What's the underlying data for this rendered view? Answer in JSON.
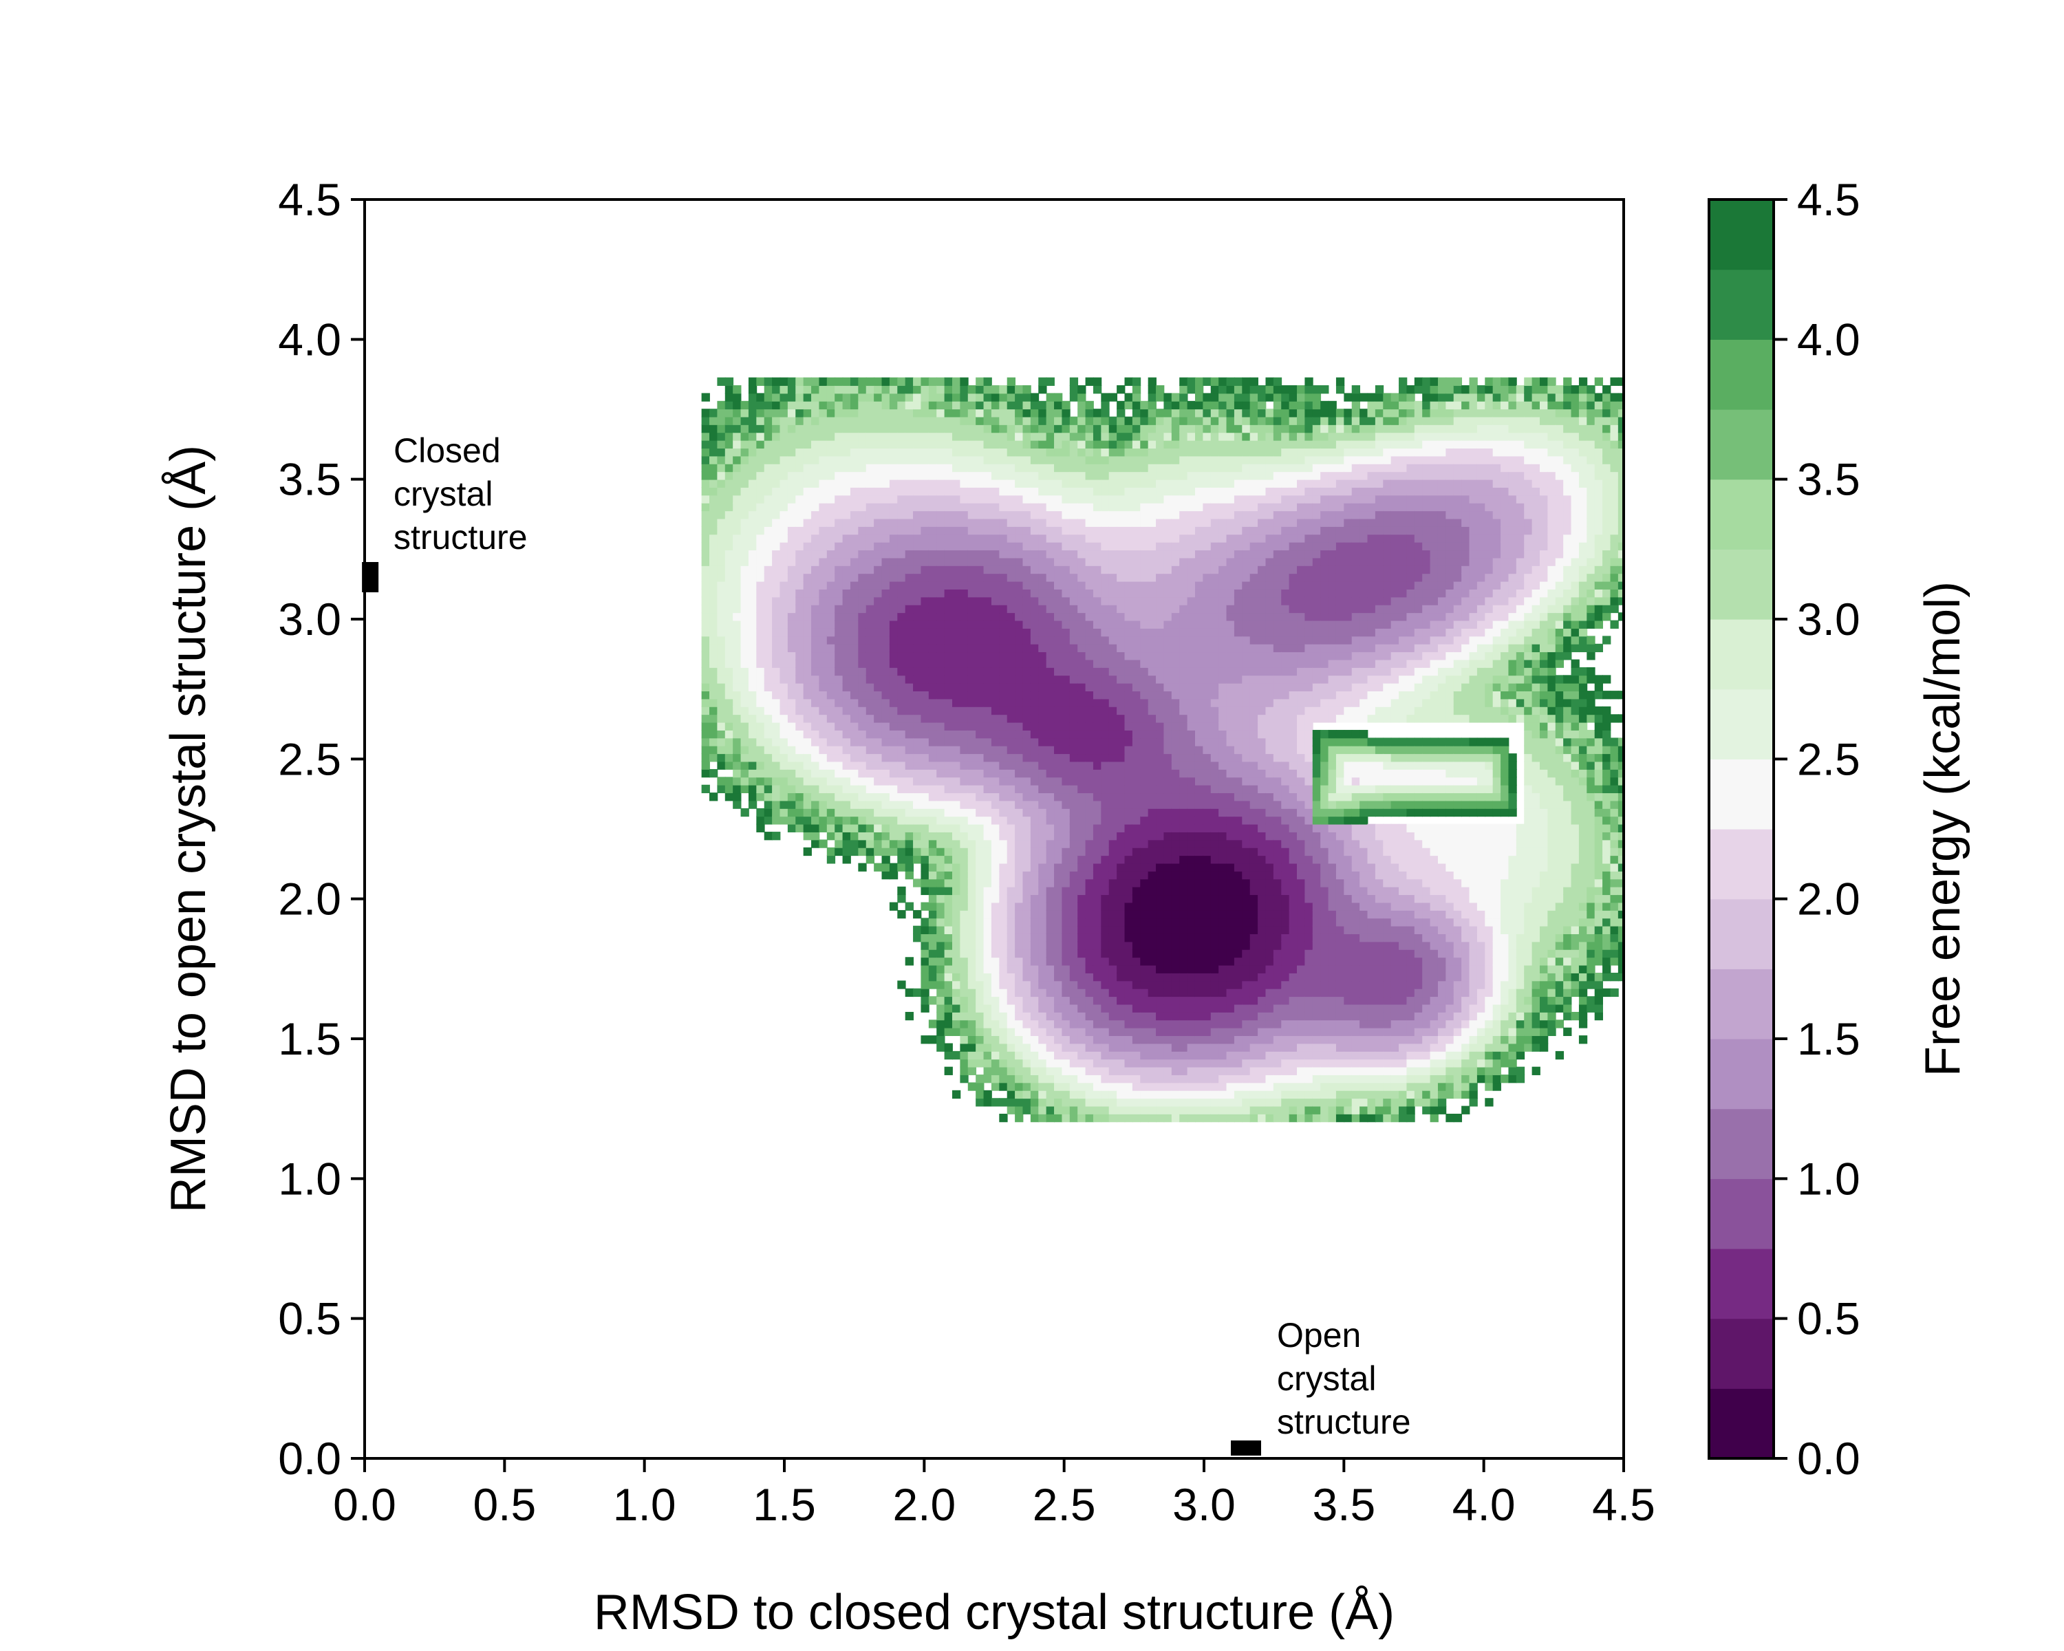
{
  "chart_data": {
    "type": "heatmap",
    "subtype": "filled-contour free energy landscape",
    "xlabel": "RMSD to closed crystal structure (Å)",
    "ylabel": "RMSD to open crystal structure (Å)",
    "xlim": [
      0.0,
      4.5
    ],
    "ylim": [
      0.0,
      4.5
    ],
    "xticks": [
      "0.0",
      "0.5",
      "1.0",
      "1.5",
      "2.0",
      "2.5",
      "3.0",
      "3.5",
      "4.0",
      "4.5"
    ],
    "yticks": [
      "0.0",
      "0.5",
      "1.0",
      "1.5",
      "2.0",
      "2.5",
      "3.0",
      "3.5",
      "4.0",
      "4.5"
    ],
    "grid": false,
    "colorbar": {
      "label": "Free energy (kcal/mol)",
      "range": [
        0.0,
        4.5
      ],
      "ticks": [
        "0.0",
        "0.5",
        "1.0",
        "1.5",
        "2.0",
        "2.5",
        "3.0",
        "3.5",
        "4.0",
        "4.5"
      ],
      "levels": [
        0.0,
        0.25,
        0.5,
        0.75,
        1.0,
        1.25,
        1.5,
        1.75,
        2.0,
        2.25,
        2.5,
        2.75,
        3.0,
        3.25,
        3.5,
        3.75,
        4.0,
        4.25,
        4.5
      ],
      "colors": [
        "#40004b",
        "#5f1669",
        "#762a83",
        "#8a529b",
        "#9970ab",
        "#b08fc2",
        "#c2a5cf",
        "#d7c1de",
        "#e7d4e8",
        "#f7f7f7",
        "#e3f3e0",
        "#d9f0d3",
        "#b4e0ae",
        "#a6dba0",
        "#76bf78",
        "#5aae61",
        "#2e8c48",
        "#1b7837",
        "#00441b"
      ],
      "colormap": "PRGn"
    },
    "minima": [
      {
        "x": 2.95,
        "y": 1.93,
        "depth": 0.05
      },
      {
        "x": 2.15,
        "y": 2.88,
        "depth": 0.55
      },
      {
        "x": 2.6,
        "y": 2.6,
        "depth": 0.9
      },
      {
        "x": 3.6,
        "y": 3.16,
        "depth": 0.95
      },
      {
        "x": 3.66,
        "y": 1.7,
        "depth": 1.0
      }
    ],
    "markers": [
      {
        "name": "Closed crystal structure",
        "x": 0.02,
        "y": 3.15,
        "label": [
          "Closed",
          "crystal",
          "structure"
        ]
      },
      {
        "name": "Open crystal structure",
        "x": 3.15,
        "y": 0.01,
        "label": [
          "Open",
          "crystal",
          "structure"
        ]
      }
    ]
  }
}
